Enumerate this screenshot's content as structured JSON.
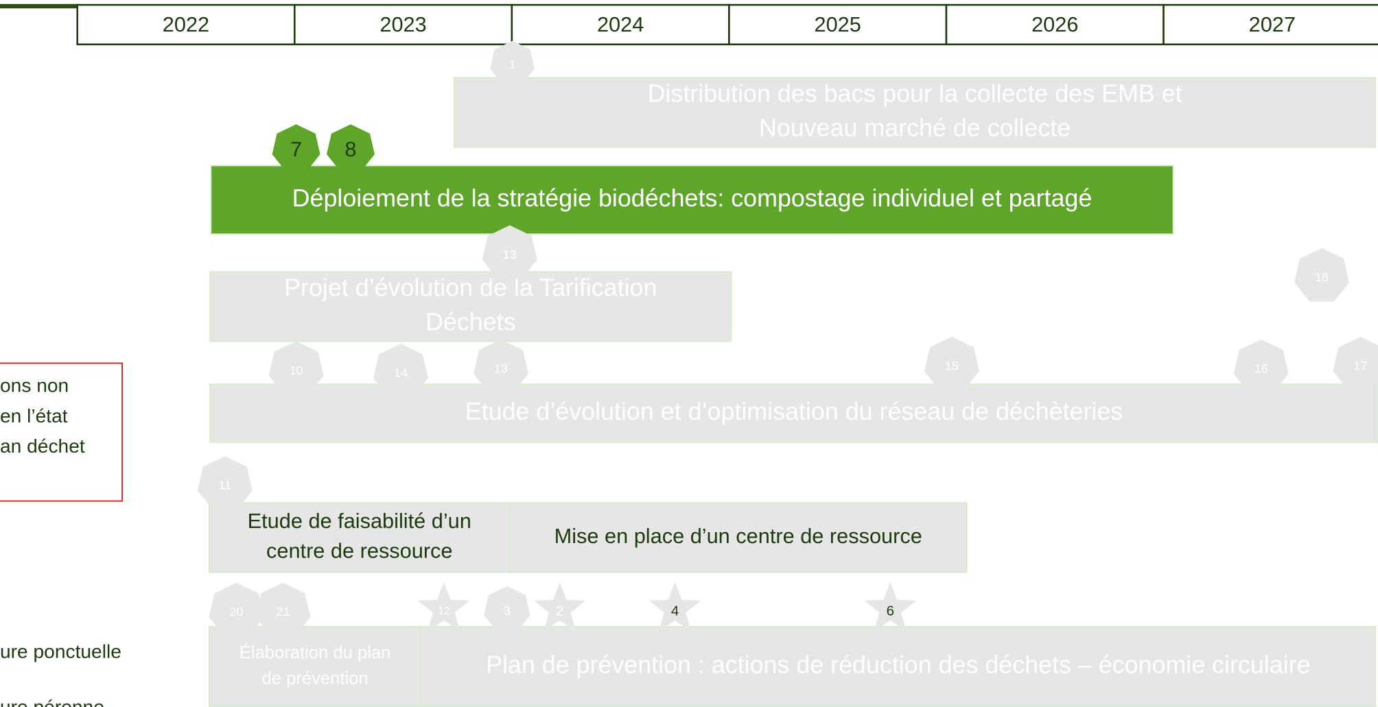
{
  "years": [
    "2022",
    "2023",
    "2024",
    "2025",
    "2026",
    "2027"
  ],
  "bars": [
    {
      "lines": [
        "Distribution des bacs pour la collecte des EMB et",
        "Nouveau marché de collecte"
      ]
    },
    {
      "lines": [
        "Déploiement de la stratégie biodéchets: compostage individuel et partagé"
      ]
    },
    {
      "lines": [
        "Projet d’évolution de la Tarification",
        "Déchets"
      ]
    },
    {
      "lines": [
        "Etude d’évolution et d’optimisation du réseau de déchèteries"
      ]
    },
    {
      "lines": [
        "Etude de faisabilité d’un",
        "centre de ressource"
      ]
    },
    {
      "lines": [
        "Mise en place d’un centre de ressource"
      ]
    },
    {
      "lines": [
        "Élaboration du plan",
        "de prévention"
      ]
    },
    {
      "lines": [
        "Plan de prévention : actions de réduction des déchets – économie circulaire"
      ]
    }
  ],
  "badges": [
    "1",
    "7",
    "8",
    "13",
    "18",
    "10",
    "14",
    "13",
    "15",
    "16",
    "17",
    "11",
    "20",
    "21",
    "3"
  ],
  "stars": [
    "12",
    "2",
    "4",
    "6"
  ],
  "legend_box": [
    "ons non",
    "en l’état",
    "an déchet"
  ],
  "legend_items": [
    "ure ponctuelle",
    "ure pérenne"
  ]
}
